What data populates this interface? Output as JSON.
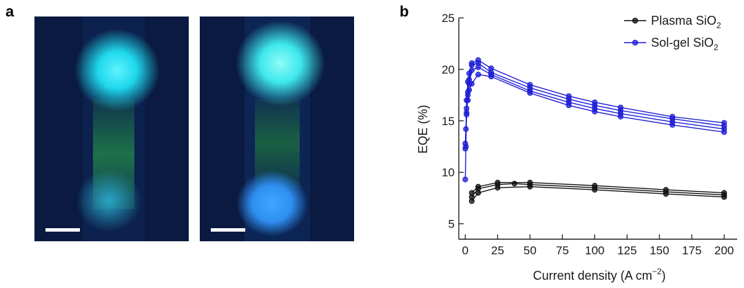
{
  "panel_a": {
    "label": "a",
    "images": [
      {
        "top_spot_color": "#1fd8ec",
        "bottom_spot_color": "#2aa6c8",
        "rod_color": "#1f7a4a"
      },
      {
        "top_spot_color": "#3ee8ec",
        "bottom_spot_color": "#2f8ff0",
        "rod_color": "#1d6a3f"
      }
    ]
  },
  "panel_b": {
    "label": "b",
    "axes": {
      "xlabel": "Current density (A cm",
      "xlabel_sup": "−2",
      "xlabel_end": ")",
      "ylabel": "EQE (%)"
    },
    "legend": [
      {
        "name": "Plasma SiO",
        "sub": "2",
        "color": "#111111"
      },
      {
        "name": "Sol-gel SiO",
        "sub": "2",
        "color": "#1f1fd6"
      }
    ]
  },
  "chart_data": {
    "type": "line",
    "xlabel": "Current density (A cm−2)",
    "ylabel": "EQE (%)",
    "xlim": [
      -5,
      210
    ],
    "ylim": [
      3.5,
      25
    ],
    "x_ticks": [
      0,
      25,
      50,
      75,
      100,
      125,
      150,
      175,
      200
    ],
    "y_ticks": [
      5,
      10,
      15,
      20,
      25
    ],
    "grid": false,
    "legend_position": "top-right",
    "series": [
      {
        "name": "Sol-gel SiO2",
        "color": "#1f1fd6",
        "points": [
          [
            0,
            9.3
          ],
          [
            0.5,
            12.5
          ],
          [
            1,
            15.8
          ],
          [
            2,
            17.5
          ],
          [
            3,
            19.0
          ],
          [
            5,
            20.6
          ],
          [
            10,
            20.9
          ],
          [
            20,
            20.1
          ],
          [
            50,
            18.5
          ],
          [
            80,
            17.4
          ],
          [
            100,
            16.8
          ],
          [
            120,
            16.3
          ],
          [
            160,
            15.4
          ],
          [
            200,
            14.8
          ]
        ]
      },
      {
        "name": "Sol-gel SiO2",
        "color": "#1f1fd6",
        "points": [
          [
            0,
            12.3
          ],
          [
            0.5,
            14.2
          ],
          [
            1,
            17.0
          ],
          [
            2,
            18.8
          ],
          [
            3,
            19.6
          ],
          [
            5,
            20.4
          ],
          [
            10,
            20.6
          ],
          [
            20,
            19.7
          ],
          [
            50,
            18.2
          ],
          [
            80,
            17.1
          ],
          [
            100,
            16.5
          ],
          [
            120,
            16.0
          ],
          [
            160,
            15.2
          ],
          [
            200,
            14.5
          ]
        ]
      },
      {
        "name": "Sol-gel SiO2",
        "color": "#1f1fd6",
        "points": [
          [
            0,
            12.8
          ],
          [
            1,
            15.6
          ],
          [
            2,
            17.8
          ],
          [
            3,
            18.6
          ],
          [
            5,
            19.9
          ],
          [
            10,
            20.2
          ],
          [
            20,
            19.5
          ],
          [
            50,
            17.9
          ],
          [
            80,
            16.8
          ],
          [
            100,
            16.2
          ],
          [
            120,
            15.7
          ],
          [
            160,
            14.9
          ],
          [
            200,
            14.2
          ]
        ]
      },
      {
        "name": "Sol-gel SiO2",
        "color": "#1f1fd6",
        "points": [
          [
            1,
            16.2
          ],
          [
            2,
            17.0
          ],
          [
            3,
            18.0
          ],
          [
            5,
            18.6
          ],
          [
            10,
            19.5
          ],
          [
            20,
            19.3
          ],
          [
            50,
            17.7
          ],
          [
            80,
            16.5
          ],
          [
            100,
            15.9
          ],
          [
            120,
            15.4
          ],
          [
            160,
            14.6
          ],
          [
            200,
            13.9
          ]
        ]
      },
      {
        "name": "Plasma SiO2",
        "color": "#111111",
        "points": [
          [
            5,
            8.0
          ],
          [
            10,
            8.6
          ],
          [
            25,
            9.0
          ],
          [
            50,
            9.0
          ],
          [
            100,
            8.7
          ],
          [
            155,
            8.3
          ],
          [
            200,
            8.0
          ]
        ]
      },
      {
        "name": "Plasma SiO2",
        "color": "#111111",
        "points": [
          [
            5,
            7.6
          ],
          [
            10,
            8.4
          ],
          [
            25,
            8.8
          ],
          [
            38,
            8.9
          ],
          [
            50,
            8.8
          ],
          [
            100,
            8.5
          ],
          [
            155,
            8.1
          ],
          [
            200,
            7.8
          ]
        ]
      },
      {
        "name": "Plasma SiO2",
        "color": "#111111",
        "points": [
          [
            5,
            7.2
          ],
          [
            10,
            8.0
          ],
          [
            25,
            8.5
          ],
          [
            50,
            8.6
          ],
          [
            100,
            8.3
          ],
          [
            155,
            7.9
          ],
          [
            200,
            7.6
          ]
        ]
      }
    ]
  }
}
